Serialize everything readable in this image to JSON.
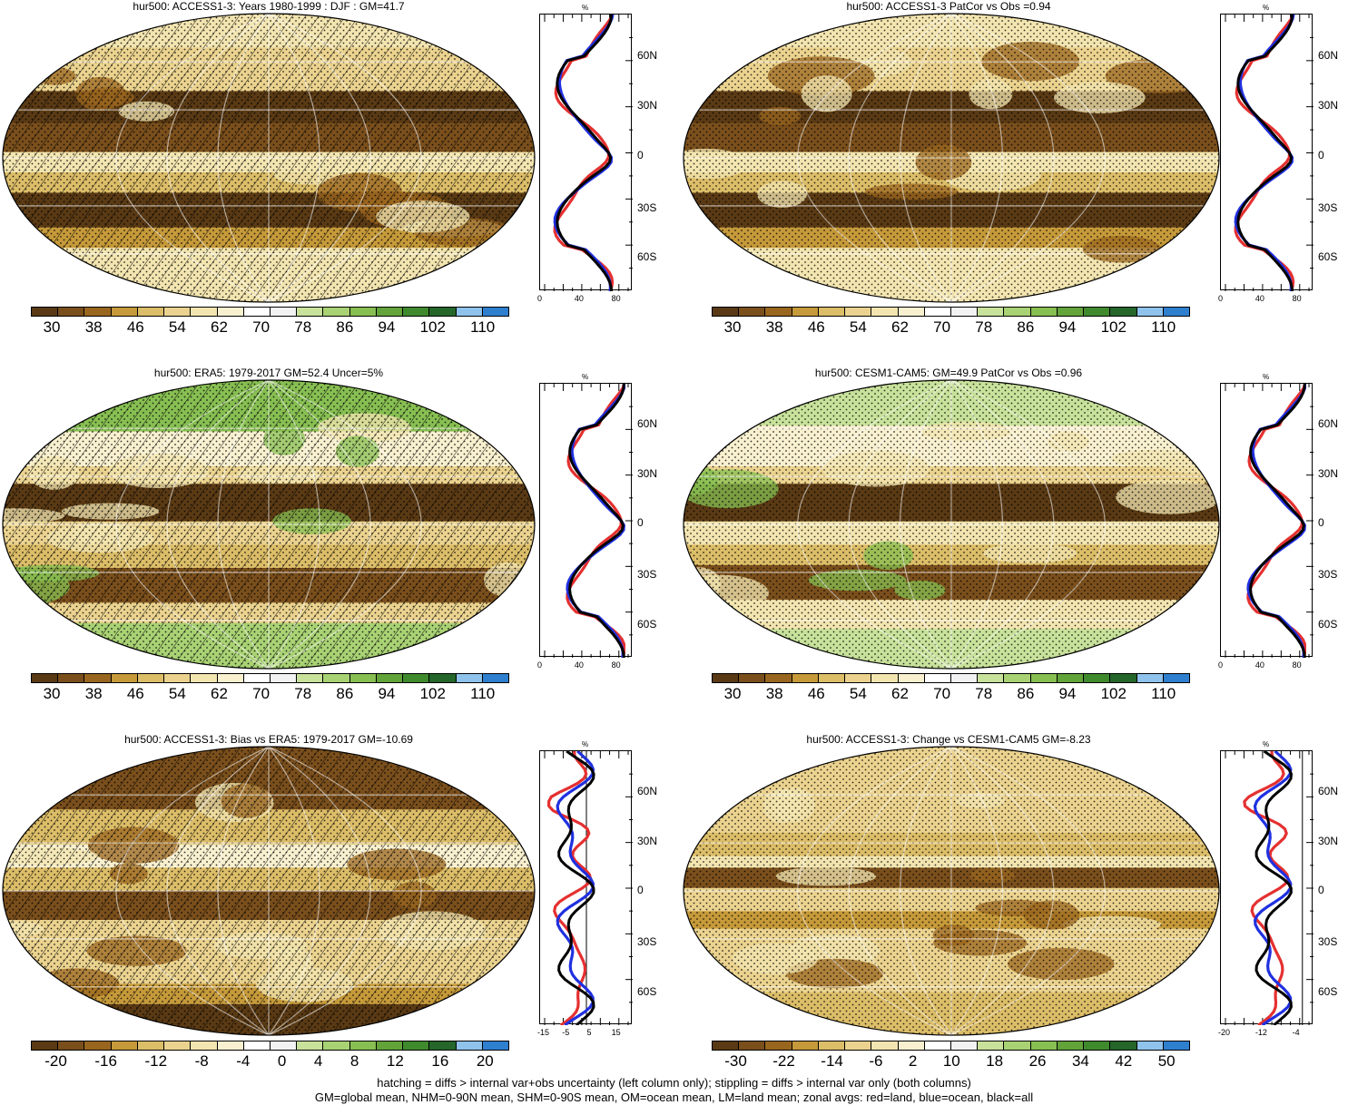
{
  "panels": [
    {
      "title": "hur500: ACCESS1-3: Years 1980-1999 : DJF : GM=41.7",
      "colorbar_labels": [
        "30",
        "38",
        "46",
        "54",
        "62",
        "70",
        "78",
        "86",
        "94",
        "102",
        "110"
      ],
      "zonal_x_labels": [
        "0",
        "40",
        "80"
      ],
      "zonal_unit": "%",
      "zonal_lat_labels": [
        "60N",
        "30N",
        "0",
        "30S",
        "60S"
      ],
      "hatched": true
    },
    {
      "title": "hur500: ACCESS1-3 PatCor vs Obs =0.94",
      "colorbar_labels": [
        "30",
        "38",
        "46",
        "54",
        "62",
        "70",
        "78",
        "86",
        "94",
        "102",
        "110"
      ],
      "zonal_x_labels": [
        "0",
        "40",
        "80"
      ],
      "zonal_unit": "%",
      "zonal_lat_labels": [
        "60N",
        "30N",
        "0",
        "30S",
        "60S"
      ],
      "hatched": false
    },
    {
      "title": "hur500: ERA5: 1979-2017 GM=52.4 Uncer=5%",
      "colorbar_labels": [
        "30",
        "38",
        "46",
        "54",
        "62",
        "70",
        "78",
        "86",
        "94",
        "102",
        "110"
      ],
      "zonal_x_labels": [
        "0",
        "40",
        "80"
      ],
      "zonal_unit": "%",
      "zonal_lat_labels": [
        "60N",
        "30N",
        "0",
        "30S",
        "60S"
      ],
      "hatched": true
    },
    {
      "title": "hur500: CESM1-CAM5: GM=49.9 PatCor vs Obs =0.96",
      "colorbar_labels": [
        "30",
        "38",
        "46",
        "54",
        "62",
        "70",
        "78",
        "86",
        "94",
        "102",
        "110"
      ],
      "zonal_x_labels": [
        "0",
        "40",
        "80"
      ],
      "zonal_unit": "%",
      "zonal_lat_labels": [
        "60N",
        "30N",
        "0",
        "30S",
        "60S"
      ],
      "hatched": false
    },
    {
      "title": "hur500: ACCESS1-3: Bias vs ERA5: 1979-2017 GM=-10.69",
      "colorbar_labels": [
        "-20",
        "-16",
        "-12",
        "-8",
        "-4",
        "0",
        "4",
        "8",
        "12",
        "16",
        "20"
      ],
      "zonal_x_labels": [
        "-15",
        "-5",
        "5",
        "15"
      ],
      "zonal_unit": "%",
      "zonal_lat_labels": [
        "60N",
        "30N",
        "0",
        "30S",
        "60S"
      ],
      "hatched": true
    },
    {
      "title": "hur500: ACCESS1-3: Change vs CESM1-CAM5 GM=-8.23",
      "colorbar_labels": [
        "-30",
        "-22",
        "-14",
        "-6",
        "2",
        "10",
        "18",
        "26",
        "34",
        "42",
        "50"
      ],
      "zonal_x_labels": [
        "-20",
        "-12",
        "-4"
      ],
      "zonal_unit": "%",
      "zonal_lat_labels": [
        "60N",
        "30N",
        "0",
        "30S",
        "60S"
      ],
      "hatched": false
    }
  ],
  "colors": {
    "abs_scale": [
      "#5a3a14",
      "#7a4f1c",
      "#99661f",
      "#c69a3a",
      "#dcbd68",
      "#ebd38f",
      "#f3e5b0",
      "#f8f0cf",
      "#ffffff",
      "#f2f2f2",
      "#c8e29b",
      "#a9d274",
      "#87bf52",
      "#62a33a",
      "#3f8a2d",
      "#25662a",
      "#8fc3ec",
      "#2f7fcf"
    ],
    "diff_scale": [
      "#5a3a14",
      "#7a4f1c",
      "#99661f",
      "#c69a3a",
      "#dcbd68",
      "#ebd38f",
      "#f3e5b0",
      "#f8f0cf",
      "#ffffff",
      "#f2f2f2",
      "#c8e29b",
      "#a9d274",
      "#87bf52",
      "#62a33a",
      "#3f8a2d",
      "#25662a",
      "#8fc3ec",
      "#2f7fcf"
    ],
    "land": "#e53030",
    "ocean": "#2030e0",
    "all": "#000000"
  },
  "footer": {
    "line1": "hatching = diffs > internal var+obs uncertainty (left column only); stippling = diffs > internal var only (both columns)",
    "line2": "GM=global mean, NHM=0-90N mean, SHM=0-90S mean, OM=ocean mean, LM=land mean; zonal avgs: red=land, blue=ocean, black=all"
  }
}
